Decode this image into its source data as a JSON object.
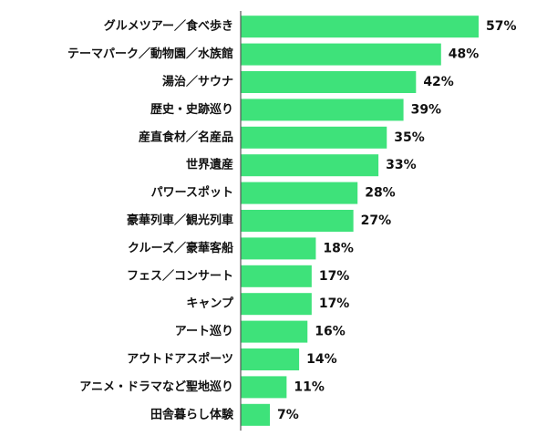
{
  "chart_data": {
    "type": "bar",
    "orientation": "horizontal",
    "categories": [
      "グルメツアー／食べ歩き",
      "テーマパーク／動物園／水族館",
      "湯治／サウナ",
      "歴史・史跡巡り",
      "産直食材／名産品",
      "世界遺産",
      "パワースポット",
      "豪華列車／観光列車",
      "クルーズ／豪華客船",
      "フェス／コンサート",
      "キャンプ",
      "アート巡り",
      "アウトドアスポーツ",
      "アニメ・ドラマなど聖地巡り",
      "田舎暮らし体験"
    ],
    "values": [
      57,
      48,
      42,
      39,
      35,
      33,
      28,
      27,
      18,
      17,
      17,
      16,
      14,
      11,
      7
    ],
    "value_labels": [
      "57%",
      "48%",
      "42%",
      "39%",
      "35%",
      "33%",
      "28%",
      "27%",
      "18%",
      "17%",
      "17%",
      "16%",
      "14%",
      "11%",
      "7%"
    ],
    "unit": "%",
    "xlim": [
      0,
      60
    ],
    "bar_color": "#3ee27a",
    "title": "",
    "xlabel": "",
    "ylabel": "",
    "grid": false,
    "legend": "none"
  }
}
